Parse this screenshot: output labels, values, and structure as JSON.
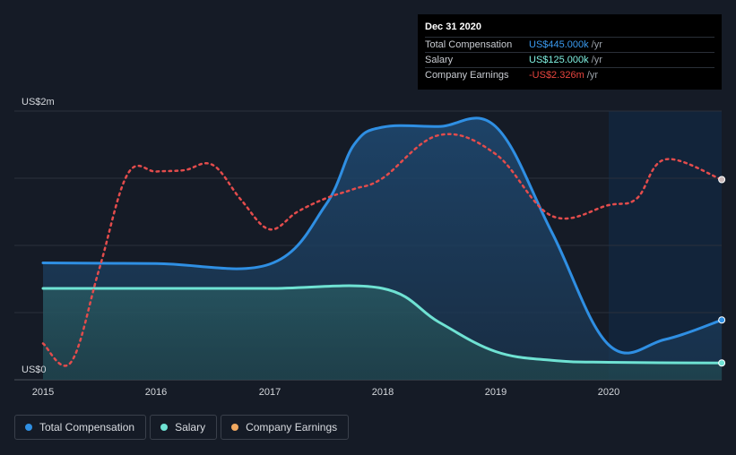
{
  "chart_data": {
    "type": "area",
    "ylabel_top": "US$2m",
    "ylabel_bottom": "US$0",
    "ylim": [
      0,
      2000
    ],
    "x_ticks": [
      "2015",
      "2016",
      "2017",
      "2018",
      "2019",
      "2020"
    ],
    "series": [
      {
        "name": "Total Compensation",
        "color": "#2f8fe3",
        "points": [
          [
            "2015-01-01",
            870
          ],
          [
            "2016-01-01",
            865
          ],
          [
            "2017-01-01",
            860
          ],
          [
            "2017-07-01",
            1300
          ],
          [
            "2017-10-01",
            1750
          ],
          [
            "2018-01-01",
            1880
          ],
          [
            "2018-07-01",
            1885
          ],
          [
            "2019-01-01",
            1885
          ],
          [
            "2019-07-01",
            1100
          ],
          [
            "2020-01-01",
            260
          ],
          [
            "2020-07-01",
            300
          ],
          [
            "2020-12-31",
            445
          ]
        ]
      },
      {
        "name": "Salary",
        "color": "#6fe2d3",
        "points": [
          [
            "2015-01-01",
            680
          ],
          [
            "2016-01-01",
            680
          ],
          [
            "2017-01-01",
            680
          ],
          [
            "2018-01-01",
            680
          ],
          [
            "2018-07-01",
            430
          ],
          [
            "2019-01-01",
            210
          ],
          [
            "2019-07-01",
            145
          ],
          [
            "2020-01-01",
            130
          ],
          [
            "2020-12-31",
            125
          ]
        ]
      },
      {
        "name": "Company Earnings",
        "color": "#e34c4c",
        "dashed": true,
        "points": [
          [
            "2015-01-01",
            270
          ],
          [
            "2015-04-01",
            130
          ],
          [
            "2015-07-01",
            820
          ],
          [
            "2015-10-01",
            1530
          ],
          [
            "2016-01-01",
            1550
          ],
          [
            "2016-04-01",
            1560
          ],
          [
            "2016-07-01",
            1600
          ],
          [
            "2016-10-01",
            1340
          ],
          [
            "2017-01-01",
            1120
          ],
          [
            "2017-04-01",
            1250
          ],
          [
            "2017-07-01",
            1350
          ],
          [
            "2017-10-01",
            1420
          ],
          [
            "2018-01-01",
            1500
          ],
          [
            "2018-07-01",
            1820
          ],
          [
            "2019-01-01",
            1680
          ],
          [
            "2019-07-01",
            1220
          ],
          [
            "2020-01-01",
            1300
          ],
          [
            "2020-04-01",
            1350
          ],
          [
            "2020-07-01",
            1640
          ],
          [
            "2020-12-31",
            1490
          ]
        ]
      }
    ],
    "highlight_start": "2020-01-01"
  },
  "tooltip": {
    "date": "Dec 31 2020",
    "rows": [
      {
        "label": "Total Compensation",
        "value": "US$445.000k",
        "unit": "/yr",
        "color": "#3a9bf0"
      },
      {
        "label": "Salary",
        "value": "US$125.000k",
        "unit": "/yr",
        "color": "#7ff0e0"
      },
      {
        "label": "Company Earnings",
        "value": "-US$2.326m",
        "unit": "/yr",
        "color": "#e8453f"
      }
    ]
  },
  "legend": [
    {
      "label": "Total Compensation",
      "color": "#2f8fe3"
    },
    {
      "label": "Salary",
      "color": "#6fe2d3"
    },
    {
      "label": "Company Earnings",
      "color": "#f0a860"
    }
  ]
}
